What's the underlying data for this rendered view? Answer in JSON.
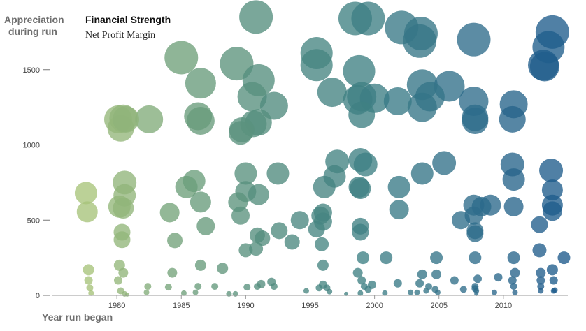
{
  "chart_data": {
    "type": "scatter",
    "title": "Financial Strength",
    "subtitle": "Net Profit Margin",
    "xlabel": "Year run began",
    "ylabel": "Appreciation during run",
    "xlim": [
      1975,
      2015
    ],
    "ylim": [
      0,
      1900
    ],
    "x_ticks": [
      "1980",
      "1985",
      "1990",
      "1995",
      "2000",
      "2005",
      "2010"
    ],
    "y_ticks": [
      "0",
      "500",
      "1000",
      "1500"
    ],
    "grid": false,
    "color_scale": [
      "#a9c47a",
      "#6fa07a",
      "#4f8a7e",
      "#3d7f84",
      "#2f6d8a",
      "#1d5a8c"
    ],
    "points": [
      {
        "x": 1977.6,
        "y": 680,
        "r": 16
      },
      {
        "x": 1977.7,
        "y": 555,
        "r": 15
      },
      {
        "x": 1977.8,
        "y": 170,
        "r": 8
      },
      {
        "x": 1977.8,
        "y": 100,
        "r": 6
      },
      {
        "x": 1977.9,
        "y": 50,
        "r": 5
      },
      {
        "x": 1978.0,
        "y": 15,
        "r": 4
      },
      {
        "x": 1980.1,
        "y": 1170,
        "r": 20
      },
      {
        "x": 1980.3,
        "y": 1110,
        "r": 19
      },
      {
        "x": 1980.5,
        "y": 1175,
        "r": 20
      },
      {
        "x": 1980.7,
        "y": 1170,
        "r": 19
      },
      {
        "x": 1980.2,
        "y": 590,
        "r": 16
      },
      {
        "x": 1980.5,
        "y": 580,
        "r": 15
      },
      {
        "x": 1980.6,
        "y": 750,
        "r": 17
      },
      {
        "x": 1980.6,
        "y": 665,
        "r": 16
      },
      {
        "x": 1980.4,
        "y": 420,
        "r": 12
      },
      {
        "x": 1980.4,
        "y": 370,
        "r": 12
      },
      {
        "x": 1980.2,
        "y": 200,
        "r": 8
      },
      {
        "x": 1980.5,
        "y": 150,
        "r": 7
      },
      {
        "x": 1980.1,
        "y": 100,
        "r": 6
      },
      {
        "x": 1980.3,
        "y": 30,
        "r": 5
      },
      {
        "x": 1980.6,
        "y": 10,
        "r": 4
      },
      {
        "x": 1980.8,
        "y": 5,
        "r": 3
      },
      {
        "x": 1982.5,
        "y": 1170,
        "r": 20
      },
      {
        "x": 1982.4,
        "y": 60,
        "r": 5
      },
      {
        "x": 1982.3,
        "y": 20,
        "r": 4
      },
      {
        "x": 1984.1,
        "y": 550,
        "r": 14
      },
      {
        "x": 1984.3,
        "y": 150,
        "r": 7
      },
      {
        "x": 1984.0,
        "y": 55,
        "r": 5
      },
      {
        "x": 1984.5,
        "y": 365,
        "r": 11
      },
      {
        "x": 1985.0,
        "y": 1580,
        "r": 24
      },
      {
        "x": 1985.4,
        "y": 720,
        "r": 16
      },
      {
        "x": 1986.0,
        "y": 760,
        "r": 16
      },
      {
        "x": 1986.3,
        "y": 1190,
        "r": 20
      },
      {
        "x": 1986.5,
        "y": 1160,
        "r": 20
      },
      {
        "x": 1986.5,
        "y": 1410,
        "r": 22
      },
      {
        "x": 1986.5,
        "y": 620,
        "r": 15
      },
      {
        "x": 1986.9,
        "y": 460,
        "r": 13
      },
      {
        "x": 1986.5,
        "y": 200,
        "r": 8
      },
      {
        "x": 1986.3,
        "y": 60,
        "r": 5
      },
      {
        "x": 1986.1,
        "y": 20,
        "r": 4
      },
      {
        "x": 1985.2,
        "y": 15,
        "r": 4
      },
      {
        "x": 1987.6,
        "y": 60,
        "r": 5
      },
      {
        "x": 1988.2,
        "y": 180,
        "r": 8
      },
      {
        "x": 1988.7,
        "y": 10,
        "r": 4
      },
      {
        "x": 1989.3,
        "y": 1540,
        "r": 24
      },
      {
        "x": 1989.7,
        "y": 1100,
        "r": 18
      },
      {
        "x": 1989.6,
        "y": 1080,
        "r": 17
      },
      {
        "x": 1989.4,
        "y": 620,
        "r": 14
      },
      {
        "x": 1989.6,
        "y": 530,
        "r": 13
      },
      {
        "x": 1989.2,
        "y": 10,
        "r": 4
      },
      {
        "x": 1990.0,
        "y": 810,
        "r": 16
      },
      {
        "x": 1990.0,
        "y": 690,
        "r": 15
      },
      {
        "x": 1990.0,
        "y": 300,
        "r": 10
      },
      {
        "x": 1990.1,
        "y": 55,
        "r": 5
      },
      {
        "x": 1990.5,
        "y": 1320,
        "r": 21
      },
      {
        "x": 1990.6,
        "y": 1140,
        "r": 19
      },
      {
        "x": 1990.8,
        "y": 1850,
        "r": 24
      },
      {
        "x": 1991.0,
        "y": 1430,
        "r": 23
      },
      {
        "x": 1991.0,
        "y": 1150,
        "r": 19
      },
      {
        "x": 1991.0,
        "y": 670,
        "r": 15
      },
      {
        "x": 1990.9,
        "y": 400,
        "r": 11
      },
      {
        "x": 1990.8,
        "y": 310,
        "r": 10
      },
      {
        "x": 1991.3,
        "y": 380,
        "r": 11
      },
      {
        "x": 1990.9,
        "y": 60,
        "r": 5
      },
      {
        "x": 1991.2,
        "y": 75,
        "r": 6
      },
      {
        "x": 1992.2,
        "y": 1260,
        "r": 20
      },
      {
        "x": 1992.5,
        "y": 810,
        "r": 16
      },
      {
        "x": 1992.6,
        "y": 430,
        "r": 12
      },
      {
        "x": 1992.0,
        "y": 90,
        "r": 6
      },
      {
        "x": 1992.2,
        "y": 60,
        "r": 5
      },
      {
        "x": 1993.6,
        "y": 355,
        "r": 11
      },
      {
        "x": 1994.2,
        "y": 500,
        "r": 13
      },
      {
        "x": 1995.5,
        "y": 1610,
        "r": 23
      },
      {
        "x": 1995.5,
        "y": 1530,
        "r": 23
      },
      {
        "x": 1995.8,
        "y": 530,
        "r": 13
      },
      {
        "x": 1996.0,
        "y": 550,
        "r": 13
      },
      {
        "x": 1995.5,
        "y": 440,
        "r": 12
      },
      {
        "x": 1996.0,
        "y": 490,
        "r": 13
      },
      {
        "x": 1996.1,
        "y": 720,
        "r": 16
      },
      {
        "x": 1995.9,
        "y": 340,
        "r": 10
      },
      {
        "x": 1996.0,
        "y": 200,
        "r": 8
      },
      {
        "x": 1995.7,
        "y": 50,
        "r": 5
      },
      {
        "x": 1996.0,
        "y": 70,
        "r": 6
      },
      {
        "x": 1996.3,
        "y": 50,
        "r": 5
      },
      {
        "x": 1996.5,
        "y": 25,
        "r": 4
      },
      {
        "x": 1996.7,
        "y": 1350,
        "r": 21
      },
      {
        "x": 1996.9,
        "y": 790,
        "r": 16
      },
      {
        "x": 1997.1,
        "y": 890,
        "r": 17
      },
      {
        "x": 1994.7,
        "y": 30,
        "r": 4
      },
      {
        "x": 1997.8,
        "y": 10,
        "r": 3
      },
      {
        "x": 1998.5,
        "y": 1840,
        "r": 24
      },
      {
        "x": 1998.8,
        "y": 1490,
        "r": 23
      },
      {
        "x": 1998.7,
        "y": 1300,
        "r": 21
      },
      {
        "x": 1999.0,
        "y": 1320,
        "r": 21
      },
      {
        "x": 1999.0,
        "y": 1200,
        "r": 19
      },
      {
        "x": 1998.9,
        "y": 900,
        "r": 17
      },
      {
        "x": 1998.8,
        "y": 720,
        "r": 15
      },
      {
        "x": 1998.9,
        "y": 710,
        "r": 15
      },
      {
        "x": 1999.3,
        "y": 870,
        "r": 17
      },
      {
        "x": 1998.9,
        "y": 460,
        "r": 12
      },
      {
        "x": 1998.9,
        "y": 420,
        "r": 12
      },
      {
        "x": 1999.1,
        "y": 250,
        "r": 9
      },
      {
        "x": 1998.7,
        "y": 150,
        "r": 7
      },
      {
        "x": 1999.0,
        "y": 100,
        "r": 6
      },
      {
        "x": 1999.2,
        "y": 60,
        "r": 5
      },
      {
        "x": 1999.5,
        "y": 40,
        "r": 5
      },
      {
        "x": 1998.9,
        "y": 15,
        "r": 4
      },
      {
        "x": 1999.5,
        "y": 1840,
        "r": 24
      },
      {
        "x": 2000.0,
        "y": 1310,
        "r": 21
      },
      {
        "x": 1999.8,
        "y": 70,
        "r": 6
      },
      {
        "x": 2000.9,
        "y": 250,
        "r": 9
      },
      {
        "x": 2000.8,
        "y": 15,
        "r": 4
      },
      {
        "x": 2001.8,
        "y": 1290,
        "r": 20
      },
      {
        "x": 2001.9,
        "y": 720,
        "r": 16
      },
      {
        "x": 2001.9,
        "y": 570,
        "r": 14
      },
      {
        "x": 2001.8,
        "y": 80,
        "r": 6
      },
      {
        "x": 2002.1,
        "y": 1780,
        "r": 24
      },
      {
        "x": 2002.8,
        "y": 20,
        "r": 4
      },
      {
        "x": 2003.5,
        "y": 1690,
        "r": 24
      },
      {
        "x": 2003.6,
        "y": 1740,
        "r": 24
      },
      {
        "x": 2003.7,
        "y": 1400,
        "r": 22
      },
      {
        "x": 2003.7,
        "y": 1250,
        "r": 21
      },
      {
        "x": 2003.7,
        "y": 810,
        "r": 16
      },
      {
        "x": 2003.7,
        "y": 140,
        "r": 7
      },
      {
        "x": 2003.5,
        "y": 80,
        "r": 6
      },
      {
        "x": 2003.3,
        "y": 20,
        "r": 4
      },
      {
        "x": 2004.3,
        "y": 1320,
        "r": 21
      },
      {
        "x": 2004.2,
        "y": 60,
        "r": 5
      },
      {
        "x": 2004.0,
        "y": 30,
        "r": 4
      },
      {
        "x": 2004.8,
        "y": 250,
        "r": 9
      },
      {
        "x": 2004.8,
        "y": 140,
        "r": 7
      },
      {
        "x": 2004.7,
        "y": 40,
        "r": 5
      },
      {
        "x": 2004.9,
        "y": 20,
        "r": 4
      },
      {
        "x": 2005.4,
        "y": 880,
        "r": 17
      },
      {
        "x": 2005.8,
        "y": 1390,
        "r": 22
      },
      {
        "x": 2006.2,
        "y": 100,
        "r": 6
      },
      {
        "x": 2006.7,
        "y": 500,
        "r": 13
      },
      {
        "x": 2006.9,
        "y": 40,
        "r": 5
      },
      {
        "x": 2007.7,
        "y": 1700,
        "r": 24
      },
      {
        "x": 2007.7,
        "y": 1290,
        "r": 21
      },
      {
        "x": 2007.8,
        "y": 1180,
        "r": 19
      },
      {
        "x": 2007.8,
        "y": 1160,
        "r": 19
      },
      {
        "x": 2007.7,
        "y": 600,
        "r": 15
      },
      {
        "x": 2007.7,
        "y": 530,
        "r": 13
      },
      {
        "x": 2007.8,
        "y": 430,
        "r": 12
      },
      {
        "x": 2007.8,
        "y": 410,
        "r": 12
      },
      {
        "x": 2007.8,
        "y": 250,
        "r": 9
      },
      {
        "x": 2008.0,
        "y": 110,
        "r": 6
      },
      {
        "x": 2007.8,
        "y": 60,
        "r": 5
      },
      {
        "x": 2007.8,
        "y": 45,
        "r": 5
      },
      {
        "x": 2007.9,
        "y": 30,
        "r": 4
      },
      {
        "x": 2007.9,
        "y": 10,
        "r": 3
      },
      {
        "x": 2008.3,
        "y": 590,
        "r": 14
      },
      {
        "x": 2009.0,
        "y": 600,
        "r": 15
      },
      {
        "x": 2009.6,
        "y": 120,
        "r": 6
      },
      {
        "x": 2009.3,
        "y": 20,
        "r": 4
      },
      {
        "x": 2010.8,
        "y": 1270,
        "r": 20
      },
      {
        "x": 2010.7,
        "y": 1170,
        "r": 19
      },
      {
        "x": 2010.7,
        "y": 870,
        "r": 17
      },
      {
        "x": 2010.8,
        "y": 770,
        "r": 16
      },
      {
        "x": 2010.8,
        "y": 590,
        "r": 14
      },
      {
        "x": 2010.8,
        "y": 250,
        "r": 9
      },
      {
        "x": 2010.9,
        "y": 150,
        "r": 7
      },
      {
        "x": 2010.7,
        "y": 100,
        "r": 6
      },
      {
        "x": 2010.8,
        "y": 60,
        "r": 5
      },
      {
        "x": 2010.9,
        "y": 20,
        "r": 4
      },
      {
        "x": 2012.8,
        "y": 470,
        "r": 12
      },
      {
        "x": 2012.8,
        "y": 300,
        "r": 10
      },
      {
        "x": 2012.9,
        "y": 150,
        "r": 7
      },
      {
        "x": 2012.9,
        "y": 100,
        "r": 6
      },
      {
        "x": 2012.9,
        "y": 60,
        "r": 5
      },
      {
        "x": 2012.9,
        "y": 30,
        "r": 4
      },
      {
        "x": 2013.1,
        "y": 1530,
        "r": 22
      },
      {
        "x": 2013.2,
        "y": 1520,
        "r": 21
      },
      {
        "x": 2013.5,
        "y": 1650,
        "r": 23
      },
      {
        "x": 2013.8,
        "y": 1750,
        "r": 24
      },
      {
        "x": 2013.7,
        "y": 830,
        "r": 17
      },
      {
        "x": 2013.8,
        "y": 700,
        "r": 15
      },
      {
        "x": 2013.8,
        "y": 600,
        "r": 15
      },
      {
        "x": 2013.8,
        "y": 560,
        "r": 14
      },
      {
        "x": 2013.8,
        "y": 170,
        "r": 8
      },
      {
        "x": 2013.9,
        "y": 100,
        "r": 6
      },
      {
        "x": 2013.9,
        "y": 30,
        "r": 4
      },
      {
        "x": 2014.0,
        "y": 35,
        "r": 4
      },
      {
        "x": 2014.7,
        "y": 250,
        "r": 9
      }
    ]
  }
}
